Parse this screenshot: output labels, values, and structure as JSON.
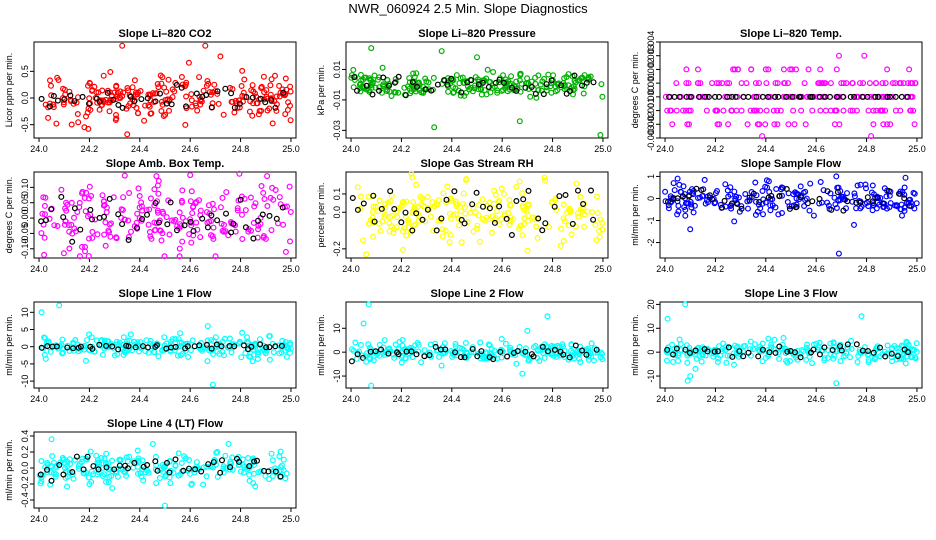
{
  "title": "NWR_060924  2.5 Min. Slope Diagnostics",
  "chart_data": [
    {
      "id": "p1",
      "type": "scatter",
      "title": "Slope Li–820 CO2",
      "ylabel": "Licor ppm per min.",
      "color": "#ff0000",
      "xlim": [
        23.98,
        25.02
      ],
      "ylim": [
        -0.75,
        1.05
      ],
      "yticks": [
        -0.5,
        0.0,
        0.5
      ],
      "xticks": [
        24.0,
        24.2,
        24.4,
        24.6,
        24.8,
        25.0
      ],
      "xtick_labels": [
        "24.0",
        "24.2",
        "24.4",
        "24.6",
        "24.8",
        "25.0"
      ],
      "ytick_labels": [
        "-0.5",
        "0.0",
        "0.5"
      ],
      "spread": 0.22,
      "n": 240,
      "seed": 11,
      "outliers": [
        [
          24.33,
          0.98
        ],
        [
          24.35,
          -0.68
        ],
        [
          24.66,
          0.98
        ],
        [
          24.18,
          -0.55
        ],
        [
          24.72,
          0.78
        ]
      ],
      "black_spread": 0.14
    },
    {
      "id": "p2",
      "type": "scatter",
      "title": "Slope Li–820 Pressure",
      "ylabel": "kPa per min.",
      "color": "#00b000",
      "xlim": [
        23.98,
        25.02
      ],
      "ylim": [
        -0.035,
        0.028
      ],
      "yticks": [
        -0.03,
        -0.01,
        0.01
      ],
      "xticks": [
        24.0,
        24.2,
        24.4,
        24.6,
        24.8,
        25.0
      ],
      "xtick_labels": [
        "24.0",
        "24.2",
        "24.4",
        "24.6",
        "24.8",
        "25.0"
      ],
      "ytick_labels": [
        "-0.03",
        "-0.01",
        "0.01"
      ],
      "spread": 0.004,
      "n": 240,
      "seed": 23,
      "outliers": [
        [
          24.33,
          -0.028
        ],
        [
          24.67,
          -0.024
        ],
        [
          24.99,
          -0.033
        ],
        [
          24.08,
          0.024
        ],
        [
          24.36,
          0.022
        ],
        [
          24.5,
          0.018
        ]
      ],
      "black_spread": 0.003
    },
    {
      "id": "p3",
      "type": "scatter",
      "title": "Slope Li–820 Temp.",
      "ylabel": "degrees C per min.",
      "color": "#ff00ff",
      "xlim": [
        23.98,
        25.02
      ],
      "ylim": [
        -0.003,
        0.004
      ],
      "yticks": [
        -0.003,
        -0.001,
        0.001,
        0.003
      ],
      "yticks_extra": [
        -0.002,
        0.0,
        0.002,
        0.004
      ],
      "xticks": [
        24.0,
        24.2,
        24.4,
        24.6,
        24.8,
        25.0
      ],
      "xtick_labels": [
        "24.0",
        "24.2",
        "24.4",
        "24.6",
        "24.8",
        "25.0"
      ],
      "ytick_labels": [
        "-0.003",
        "-0.002",
        "-0.001",
        "0.000",
        "0.001",
        "0.002",
        "0.003",
        "0.004"
      ],
      "quantized": 0.001,
      "n": 220,
      "seed": 37,
      "outliers": [],
      "black_spread": 0.0
    },
    {
      "id": "p4",
      "type": "scatter",
      "title": "Slope Amb. Box Temp.",
      "ylabel": "degrees C per min.",
      "color": "#ff00ff",
      "xlim": [
        23.98,
        25.02
      ],
      "ylim": [
        -0.13,
        0.15
      ],
      "yticks": [
        -0.1,
        -0.05,
        0.0,
        0.05,
        0.1
      ],
      "xticks": [
        24.0,
        24.2,
        24.4,
        24.6,
        24.8,
        25.0
      ],
      "xtick_labels": [
        "24.0",
        "24.2",
        "24.4",
        "24.6",
        "24.8",
        "25.0"
      ],
      "ytick_labels": [
        "-0.10",
        "-0.05",
        "0.00",
        "0.05",
        "0.10"
      ],
      "spread": 0.055,
      "n": 230,
      "seed": 41,
      "outliers": [
        [
          24.6,
          0.14
        ],
        [
          24.02,
          -0.12
        ],
        [
          24.98,
          -0.11
        ]
      ],
      "black_spread": 0.04
    },
    {
      "id": "p5",
      "type": "scatter",
      "title": "Slope Gas Stream RH",
      "ylabel": "percent per min.",
      "color": "#ffff00",
      "xlim": [
        23.98,
        25.02
      ],
      "ylim": [
        -0.25,
        0.22
      ],
      "yticks": [
        -0.2,
        0.0,
        0.1
      ],
      "xticks": [
        24.0,
        24.2,
        24.4,
        24.6,
        24.8,
        25.0
      ],
      "xtick_labels": [
        "24.0",
        "24.2",
        "24.4",
        "24.6",
        "24.8",
        "25.0"
      ],
      "ytick_labels": [
        "-0.2",
        "0.0",
        "0.1"
      ],
      "spread": 0.08,
      "n": 230,
      "seed": 53,
      "outliers": [
        [
          24.06,
          -0.23
        ],
        [
          24.7,
          -0.21
        ]
      ],
      "black_spread": 0.06
    },
    {
      "id": "p6",
      "type": "scatter",
      "title": "Slope Sample Flow",
      "ylabel": "ml/min per min.",
      "color": "#0000ff",
      "xlim": [
        23.98,
        25.02
      ],
      "ylim": [
        -2.7,
        1.2
      ],
      "yticks": [
        -2,
        -1,
        0,
        1
      ],
      "xticks": [
        24.0,
        24.2,
        24.4,
        24.6,
        24.8,
        25.0
      ],
      "xtick_labels": [
        "24.0",
        "24.2",
        "24.4",
        "24.6",
        "24.8",
        "25.0"
      ],
      "ytick_labels": [
        "-2",
        "-1",
        "0",
        "1"
      ],
      "spread": 0.35,
      "n": 230,
      "seed": 67,
      "outliers": [
        [
          24.69,
          -2.5
        ],
        [
          24.68,
          1.0
        ],
        [
          24.1,
          -1.4
        ],
        [
          24.75,
          -1.2
        ],
        [
          24.05,
          0.9
        ]
      ],
      "black_spread": 0.25
    },
    {
      "id": "p7",
      "type": "scatter",
      "title": "Slope Line 1 Flow",
      "ylabel": "ml/min per min.",
      "color": "#00ffff",
      "xlim": [
        23.98,
        25.02
      ],
      "ylim": [
        -12,
        13
      ],
      "yticks": [
        -10,
        -5,
        0,
        5,
        10
      ],
      "xticks": [
        24.0,
        24.2,
        24.4,
        24.6,
        24.8,
        25.0
      ],
      "xtick_labels": [
        "24.0",
        "24.2",
        "24.4",
        "24.6",
        "24.8",
        "25.0"
      ],
      "ytick_labels": [
        "-10",
        "-5",
        "0",
        "5",
        "10"
      ],
      "spread": 1.6,
      "n": 230,
      "seed": 79,
      "outliers": [
        [
          24.08,
          12
        ],
        [
          24.69,
          -11
        ],
        [
          24.01,
          10
        ],
        [
          24.67,
          6
        ]
      ],
      "black_spread": 0.4
    },
    {
      "id": "p8",
      "type": "scatter",
      "title": "Slope Line 2 Flow",
      "ylabel": "ml/min per min.",
      "color": "#00ffff",
      "xlim": [
        23.98,
        25.02
      ],
      "ylim": [
        -15,
        21
      ],
      "yticks": [
        -10,
        0,
        10
      ],
      "xticks": [
        24.0,
        24.2,
        24.4,
        24.6,
        24.8,
        25.0
      ],
      "xtick_labels": [
        "24.0",
        "24.2",
        "24.4",
        "24.6",
        "24.8",
        "25.0"
      ],
      "ytick_labels": [
        "-10",
        "0",
        "10"
      ],
      "spread": 2.0,
      "n": 230,
      "seed": 83,
      "outliers": [
        [
          24.07,
          20
        ],
        [
          24.08,
          -14
        ],
        [
          24.05,
          12
        ],
        [
          24.78,
          15
        ],
        [
          24.68,
          -9
        ],
        [
          24.7,
          9
        ],
        [
          24.06,
          -4
        ]
      ],
      "black_spread": 1.5
    },
    {
      "id": "p9",
      "type": "scatter",
      "title": "Slope Line 3 Flow",
      "ylabel": "ml/min per min.",
      "color": "#00ffff",
      "xlim": [
        23.98,
        25.02
      ],
      "ylim": [
        -15,
        21
      ],
      "yticks": [
        -10,
        0,
        10,
        20
      ],
      "xticks": [
        24.0,
        24.2,
        24.4,
        24.6,
        24.8,
        25.0
      ],
      "xtick_labels": [
        "24.0",
        "24.2",
        "24.4",
        "24.6",
        "24.8",
        "25.0"
      ],
      "ytick_labels": [
        "-10",
        "0",
        "10",
        "20"
      ],
      "spread": 2.2,
      "n": 230,
      "seed": 97,
      "outliers": [
        [
          24.08,
          20
        ],
        [
          24.09,
          -12
        ],
        [
          24.1,
          -10
        ],
        [
          24.68,
          -13
        ],
        [
          24.78,
          15
        ],
        [
          24.01,
          14
        ]
      ],
      "black_spread": 1.4
    },
    {
      "id": "p10",
      "type": "scatter",
      "title": "Slope Line 4 (LT) Flow",
      "ylabel": "ml/min per min.",
      "color": "#00ffff",
      "xlim": [
        23.98,
        25.02
      ],
      "ylim": [
        -0.5,
        0.45
      ],
      "yticks": [
        -0.4,
        -0.2,
        0.0,
        0.2,
        0.4
      ],
      "xticks": [
        24.0,
        24.2,
        24.4,
        24.6,
        24.8,
        25.0
      ],
      "xtick_labels": [
        "24.0",
        "24.2",
        "24.4",
        "24.6",
        "24.8",
        "25.0"
      ],
      "ytick_labels": [
        "-0.4",
        "-0.2",
        "0.0",
        "0.2",
        "0.4"
      ],
      "spread": 0.1,
      "n": 230,
      "seed": 109,
      "outliers": [
        [
          24.5,
          -0.47
        ],
        [
          24.05,
          0.36
        ]
      ],
      "black_spread": 0.07
    }
  ]
}
